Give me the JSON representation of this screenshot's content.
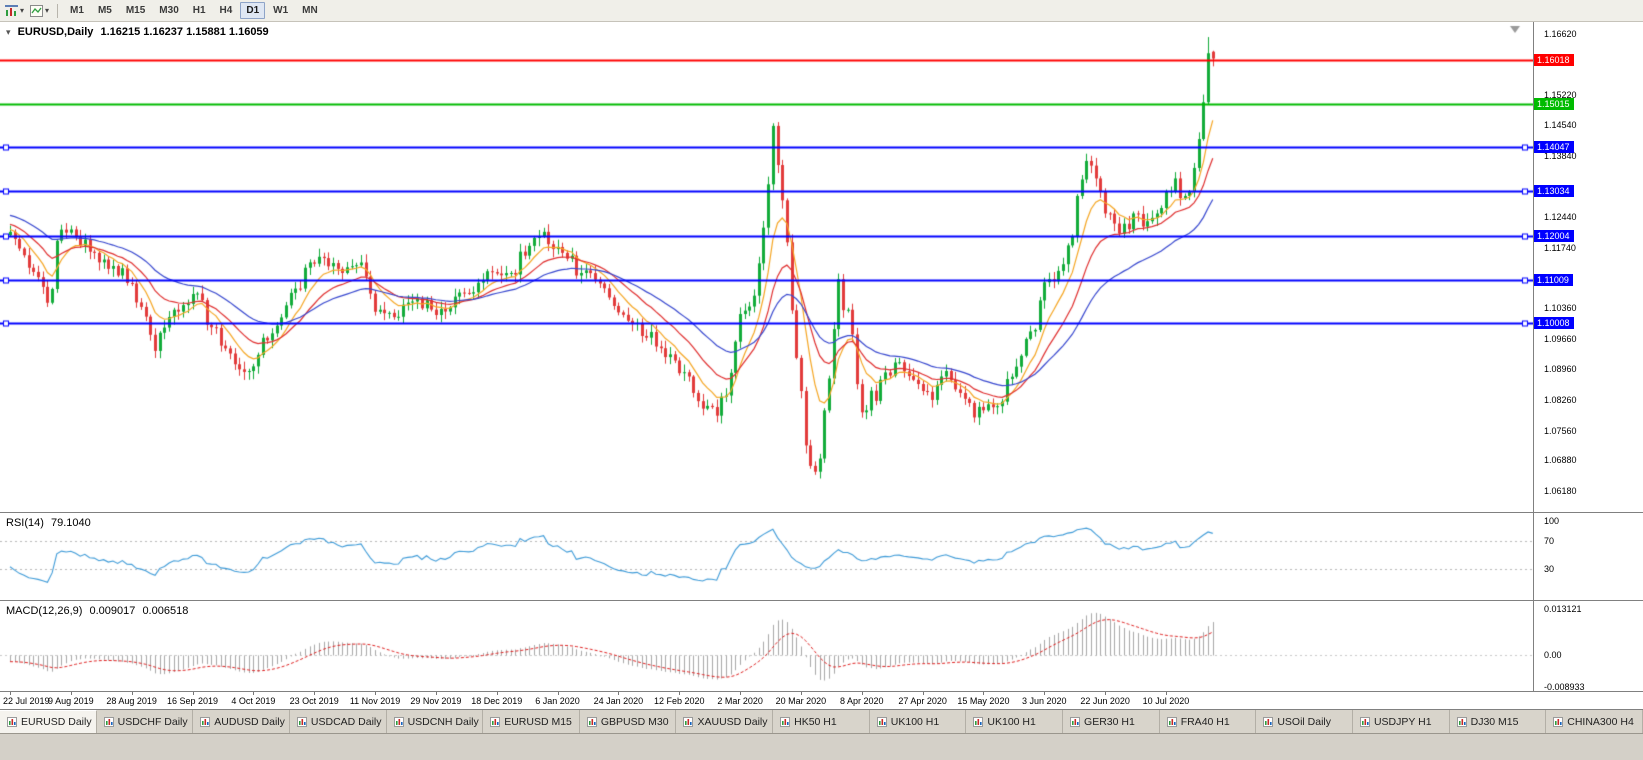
{
  "toolbar": {
    "timeframes": [
      "M1",
      "M5",
      "M15",
      "M30",
      "H1",
      "H4",
      "D1",
      "W1",
      "MN"
    ],
    "active_timeframe": "D1"
  },
  "main_chart": {
    "collapse_icon": "▾",
    "title": "EURUSD,Daily",
    "quote": "1.16215 1.16237 1.15881 1.16059",
    "axis_labels": [
      "1.16620",
      "1.15220",
      "1.14540",
      "1.13840",
      "1.12440",
      "1.11740",
      "1.10360",
      "1.09660",
      "1.08960",
      "1.08260",
      "1.07560",
      "1.06880",
      "1.06180"
    ]
  },
  "rsi": {
    "title": "RSI(14)",
    "value": "79.1040",
    "axis_labels": [
      "100",
      "70",
      "30"
    ],
    "level_lines": [
      70,
      30
    ],
    "line_color": "#3E9BD8"
  },
  "macd": {
    "title": "MACD(12,26,9)",
    "values": [
      "0.009017",
      "0.006518"
    ],
    "axis_labels": [
      "0.013121",
      "0.00",
      "-0.008933"
    ],
    "axis_values": [
      0.013121,
      0.0,
      -0.008933
    ],
    "histogram_color": "#A8A8A8",
    "signal_color": "#E02020"
  },
  "date_axis": [
    "22 Jul 2019",
    "9 Aug 2019",
    "28 Aug 2019",
    "16 Sep 2019",
    "4 Oct 2019",
    "23 Oct 2019",
    "11 Nov 2019",
    "29 Nov 2019",
    "18 Dec 2019",
    "6 Jan 2020",
    "24 Jan 2020",
    "12 Feb 2020",
    "2 Mar 2020",
    "20 Mar 2020",
    "8 Apr 2020",
    "27 Apr 2020",
    "15 May 2020",
    "3 Jun 2020",
    "22 Jun 2020",
    "10 Jul 2020"
  ],
  "tabs": {
    "active_index": 0,
    "items": [
      "EURUSD Daily",
      "USDCHF Daily",
      "AUDUSD Daily",
      "USDCAD Daily",
      "USDCNH Daily",
      "EURUSD M15",
      "GBPUSD M30",
      "XAUUSD Daily",
      "HK50 H1",
      "UK100 H1",
      "UK100 H1",
      "GER30 H1",
      "FRA40 H1",
      "USOil Daily",
      "USDJPY H1",
      "DJ30 M15",
      "CHINA300 H4"
    ]
  },
  "chart_data": {
    "type": "candlestick",
    "symbol": "EURUSD",
    "timeframe": "Daily",
    "bars": 258,
    "bars_per_date_label": 13,
    "y_axis": {
      "top_label": 1.1662,
      "bottom_label": 1.0618,
      "step": 0.007
    },
    "up_color": "#12AC3A",
    "down_color": "#E23B3B",
    "hlines": [
      {
        "price": 1.16018,
        "label": "1.16018",
        "color": "#FF0000",
        "width": 2,
        "handles": false
      },
      {
        "price": 1.15015,
        "label": "1.15015",
        "color": "#00BB00",
        "width": 2,
        "handles": false
      },
      {
        "price": 1.14047,
        "label": "1.14047",
        "color": "#0000FF",
        "width": 2,
        "handles": true
      },
      {
        "price": 1.13034,
        "label": "1.13034",
        "color": "#0000FF",
        "width": 2,
        "handles": true
      },
      {
        "price": 1.12004,
        "label": "1.12004",
        "color": "#0000FF",
        "width": 2,
        "handles": true
      },
      {
        "price": 1.11009,
        "label": "1.11009",
        "color": "#0000FF",
        "width": 2,
        "handles": true
      },
      {
        "price": 1.10008,
        "label": "1.10008",
        "color": "#0000FF",
        "width": 2,
        "handles": true
      }
    ],
    "moving_averages": [
      {
        "period": 8,
        "color": "#F5A623"
      },
      {
        "period": 17,
        "color": "#E02F2F"
      },
      {
        "period": 34,
        "color": "#3747CF"
      }
    ],
    "indicators": {
      "rsi_period": 14,
      "rsi_current": 79.104,
      "macd_params": [
        12,
        26,
        9
      ],
      "macd_current": [
        0.009017,
        0.006518
      ]
    },
    "price_anchors": [
      [
        0,
        1.121
      ],
      [
        4,
        1.1128
      ],
      [
        8,
        1.1048
      ],
      [
        11,
        1.1215
      ],
      [
        14,
        1.12
      ],
      [
        18,
        1.1162
      ],
      [
        22,
        1.1132
      ],
      [
        26,
        1.1092
      ],
      [
        31,
        1.0938
      ],
      [
        35,
        1.1032
      ],
      [
        39,
        1.1068
      ],
      [
        43,
        1.0992
      ],
      [
        47,
        1.0932
      ],
      [
        51,
        1.0892
      ],
      [
        55,
        1.0962
      ],
      [
        59,
        1.1042
      ],
      [
        63,
        1.1128
      ],
      [
        67,
        1.115
      ],
      [
        71,
        1.1116
      ],
      [
        75,
        1.114
      ],
      [
        79,
        1.1032
      ],
      [
        83,
        1.1016
      ],
      [
        87,
        1.1058
      ],
      [
        91,
        1.102
      ],
      [
        95,
        1.1062
      ],
      [
        99,
        1.1072
      ],
      [
        103,
        1.1118
      ],
      [
        107,
        1.1116
      ],
      [
        111,
        1.1178
      ],
      [
        114,
        1.121
      ],
      [
        118,
        1.1162
      ],
      [
        122,
        1.1116
      ],
      [
        126,
        1.1092
      ],
      [
        130,
        1.1026
      ],
      [
        134,
        1.1002
      ],
      [
        138,
        1.0948
      ],
      [
        142,
        1.0916
      ],
      [
        146,
        1.0842
      ],
      [
        151,
        1.079
      ],
      [
        154,
        1.0888
      ],
      [
        157,
        1.103
      ],
      [
        160,
        1.1138
      ],
      [
        163,
        1.1452
      ],
      [
        165,
        1.1282
      ],
      [
        166,
        1.1186
      ],
      [
        168,
        1.0922
      ],
      [
        170,
        1.0722
      ],
      [
        172,
        1.0662
      ],
      [
        174,
        1.0802
      ],
      [
        177,
        1.1102
      ],
      [
        179,
        1.1032
      ],
      [
        181,
        1.0862
      ],
      [
        183,
        1.0802
      ],
      [
        186,
        1.0872
      ],
      [
        190,
        1.0912
      ],
      [
        193,
        1.0872
      ],
      [
        197,
        1.0826
      ],
      [
        200,
        1.0892
      ],
      [
        203,
        1.0842
      ],
      [
        206,
        1.0786
      ],
      [
        209,
        1.0816
      ],
      [
        212,
        1.0822
      ],
      [
        215,
        1.0902
      ],
      [
        219,
        1.0986
      ],
      [
        222,
        1.1102
      ],
      [
        225,
        1.1136
      ],
      [
        228,
        1.1292
      ],
      [
        230,
        1.1372
      ],
      [
        232,
        1.1332
      ],
      [
        234,
        1.1252
      ],
      [
        237,
        1.1206
      ],
      [
        240,
        1.1252
      ],
      [
        242,
        1.1222
      ],
      [
        244,
        1.1242
      ],
      [
        247,
        1.1302
      ],
      [
        249,
        1.1332
      ],
      [
        251,
        1.1292
      ],
      [
        253,
        1.1356
      ],
      [
        254,
        1.1422
      ],
      [
        255,
        1.1506
      ],
      [
        256,
        1.1618
      ],
      [
        257,
        1.1606
      ]
    ],
    "prev_bar": {
      "close": 1.1618,
      "high": 1.1655
    },
    "last_bar": {
      "open": 1.16215,
      "high": 1.16237,
      "low": 1.15881,
      "close": 1.16059
    }
  }
}
